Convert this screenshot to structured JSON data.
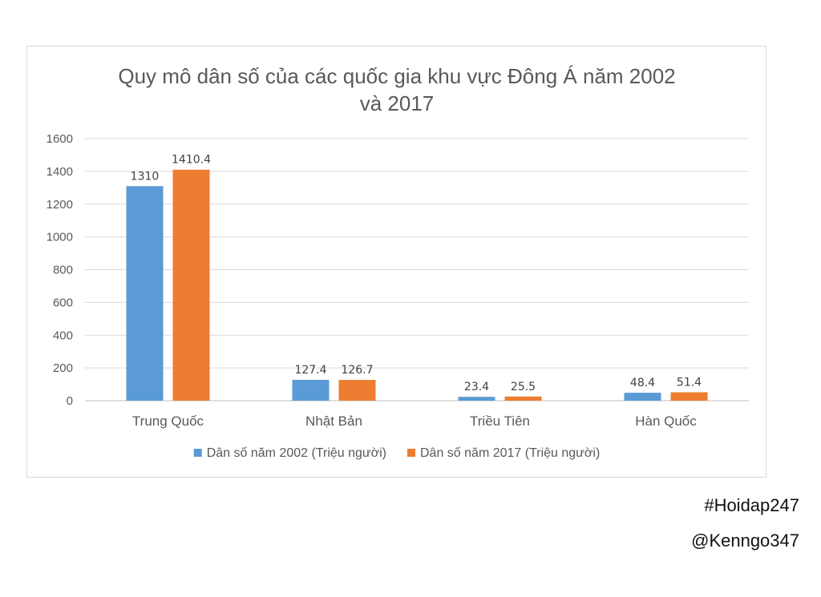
{
  "chart_data": {
    "type": "bar",
    "title_lines": [
      "Quy mô dân số của các quốc gia khu vực Đông Á năm 2002",
      "và 2017"
    ],
    "categories": [
      "Trung Quốc",
      "Nhật Bản",
      "Triều Tiên",
      "Hàn Quốc"
    ],
    "series": [
      {
        "name": "Dân số năm 2002 (Triệu người)",
        "values": [
          1310,
          127.4,
          23.4,
          48.4
        ],
        "labels": [
          "1310",
          "127.4",
          "23.4",
          "48.4"
        ],
        "color": "#5b9bd5"
      },
      {
        "name": "Dân số năm 2017 (Triệu người)",
        "values": [
          1410.4,
          126.7,
          25.5,
          51.4
        ],
        "labels": [
          "1410.4",
          "126.7",
          "25.5",
          "51.4"
        ],
        "color": "#ed7d31"
      }
    ],
    "ylim": [
      0,
      1600
    ],
    "yticks": [
      0,
      200,
      400,
      600,
      800,
      1000,
      1200,
      1400,
      1600
    ],
    "grid": true,
    "legend_position": "bottom"
  },
  "tags": [
    "#Hoidap247",
    "@Kenngo347"
  ]
}
